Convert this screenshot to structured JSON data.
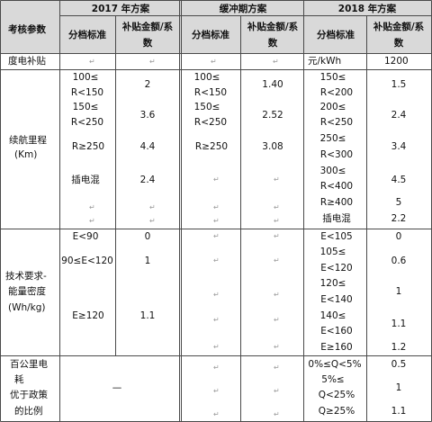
{
  "header": {
    "param": "考核参数",
    "y2017": "2017 年方案",
    "buffer": "缓冲期方案",
    "y2018": "2018 年方案",
    "std": "分档标准",
    "sub_l1": "补贴金额/系",
    "sub_l2": "数"
  },
  "row_charge": {
    "label": "度电补贴",
    "unit": "元/kWh",
    "value": "1200"
  },
  "row_range": {
    "label_l1": "续航里程",
    "label_l2": "(Km)",
    "y2017_std": [
      "100≤",
      "R<150",
      "150≤",
      "R<250",
      "R≥250",
      "插电混"
    ],
    "y2017_val": [
      "2",
      "3.6",
      "4.4",
      "2.4"
    ],
    "buf_std": [
      "100≤",
      "R<150",
      "150≤",
      "R<250",
      "R≥250"
    ],
    "buf_val": [
      "1.40",
      "2.52",
      "3.08"
    ],
    "y2018_std": [
      "150≤",
      "R<200",
      "200≤",
      "R<250",
      "250≤",
      "R<300",
      "300≤",
      "R<400",
      "R≥400",
      "插电混"
    ],
    "y2018_val": [
      "1.5",
      "2.4",
      "3.4",
      "4.5",
      "5",
      "2.2"
    ]
  },
  "row_energy": {
    "label_l1": "技术要求-",
    "label_l2": "能量密度",
    "label_l3": "(Wh/kg)",
    "y2017_std": [
      "E<90",
      "90≤E<120",
      "E≥120"
    ],
    "y2017_val": [
      "0",
      "1",
      "1.1"
    ],
    "y2018_std": [
      "E<105",
      "105≤",
      "E<120",
      "120≤",
      "E<140",
      "140≤",
      "E<160",
      "E≥160"
    ],
    "y2018_val": [
      "0",
      "0.6",
      "1",
      "1.1",
      "1.2"
    ]
  },
  "row_consumption": {
    "label_l1": "百公里电",
    "label_l2": "耗",
    "label_l3": "优于政策",
    "label_l4": "的比例",
    "dash": "—",
    "y2018_std": [
      "0%≤Q<5%",
      "5%≤",
      "Q<25%",
      "Q≥25%"
    ],
    "y2018_val": [
      "0.5",
      "1",
      "1.1"
    ]
  },
  "mark": "↵",
  "colors": {
    "header_bg": "#d9d9d9",
    "border": "#4a4a4a"
  }
}
